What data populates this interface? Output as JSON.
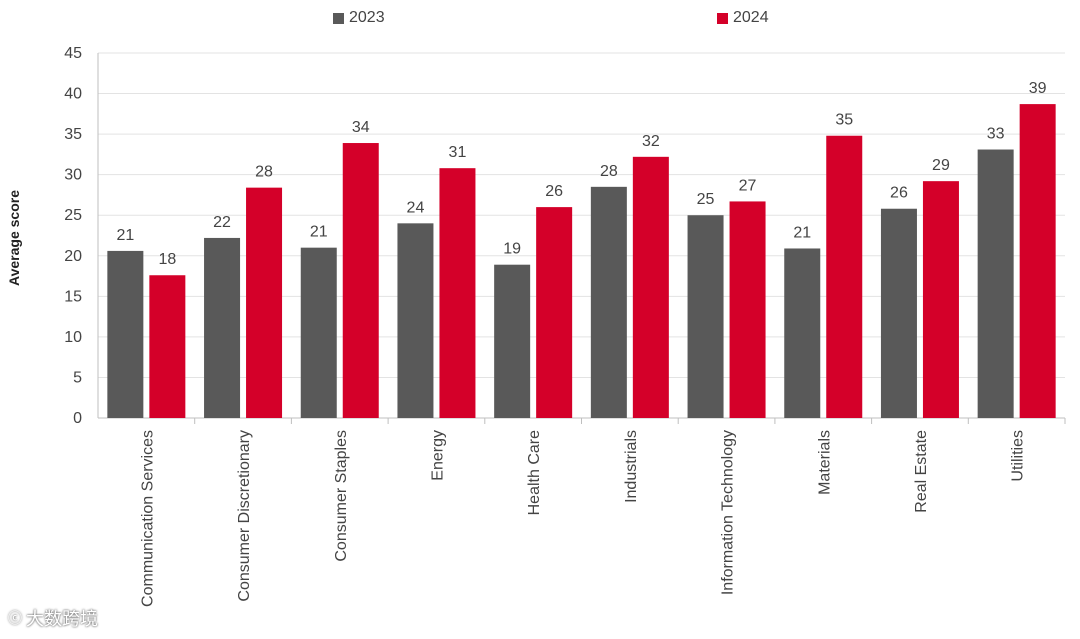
{
  "chart_data": {
    "type": "bar",
    "title": "",
    "xlabel": "",
    "ylabel": "Average score",
    "ylim": [
      0,
      45
    ],
    "yticks": [
      0,
      5,
      10,
      15,
      20,
      25,
      30,
      35,
      40,
      45
    ],
    "grid": true,
    "legend_position": "top",
    "categories": [
      "Communication Services",
      "Consumer Discretionary",
      "Consumer Staples",
      "Energy",
      "Health Care",
      "Industrials",
      "Information Technology",
      "Materials",
      "Real Estate",
      "Utilities"
    ],
    "series": [
      {
        "name": "2023",
        "color": "#595959",
        "values": [
          20.6,
          22.2,
          21.0,
          24.0,
          18.9,
          28.5,
          25.0,
          20.9,
          25.8,
          33.1
        ],
        "labels": [
          "21",
          "22",
          "21",
          "24",
          "19",
          "28",
          "25",
          "21",
          "26",
          "33"
        ]
      },
      {
        "name": "2024",
        "color": "#d40029",
        "values": [
          17.6,
          28.4,
          33.9,
          30.8,
          26.0,
          32.2,
          26.7,
          34.8,
          29.2,
          38.7
        ],
        "labels": [
          "18",
          "28",
          "34",
          "31",
          "26",
          "32",
          "27",
          "35",
          "29",
          "39"
        ]
      }
    ]
  },
  "watermark": {
    "text": "大数跨境",
    "icon": "logo-icon"
  }
}
